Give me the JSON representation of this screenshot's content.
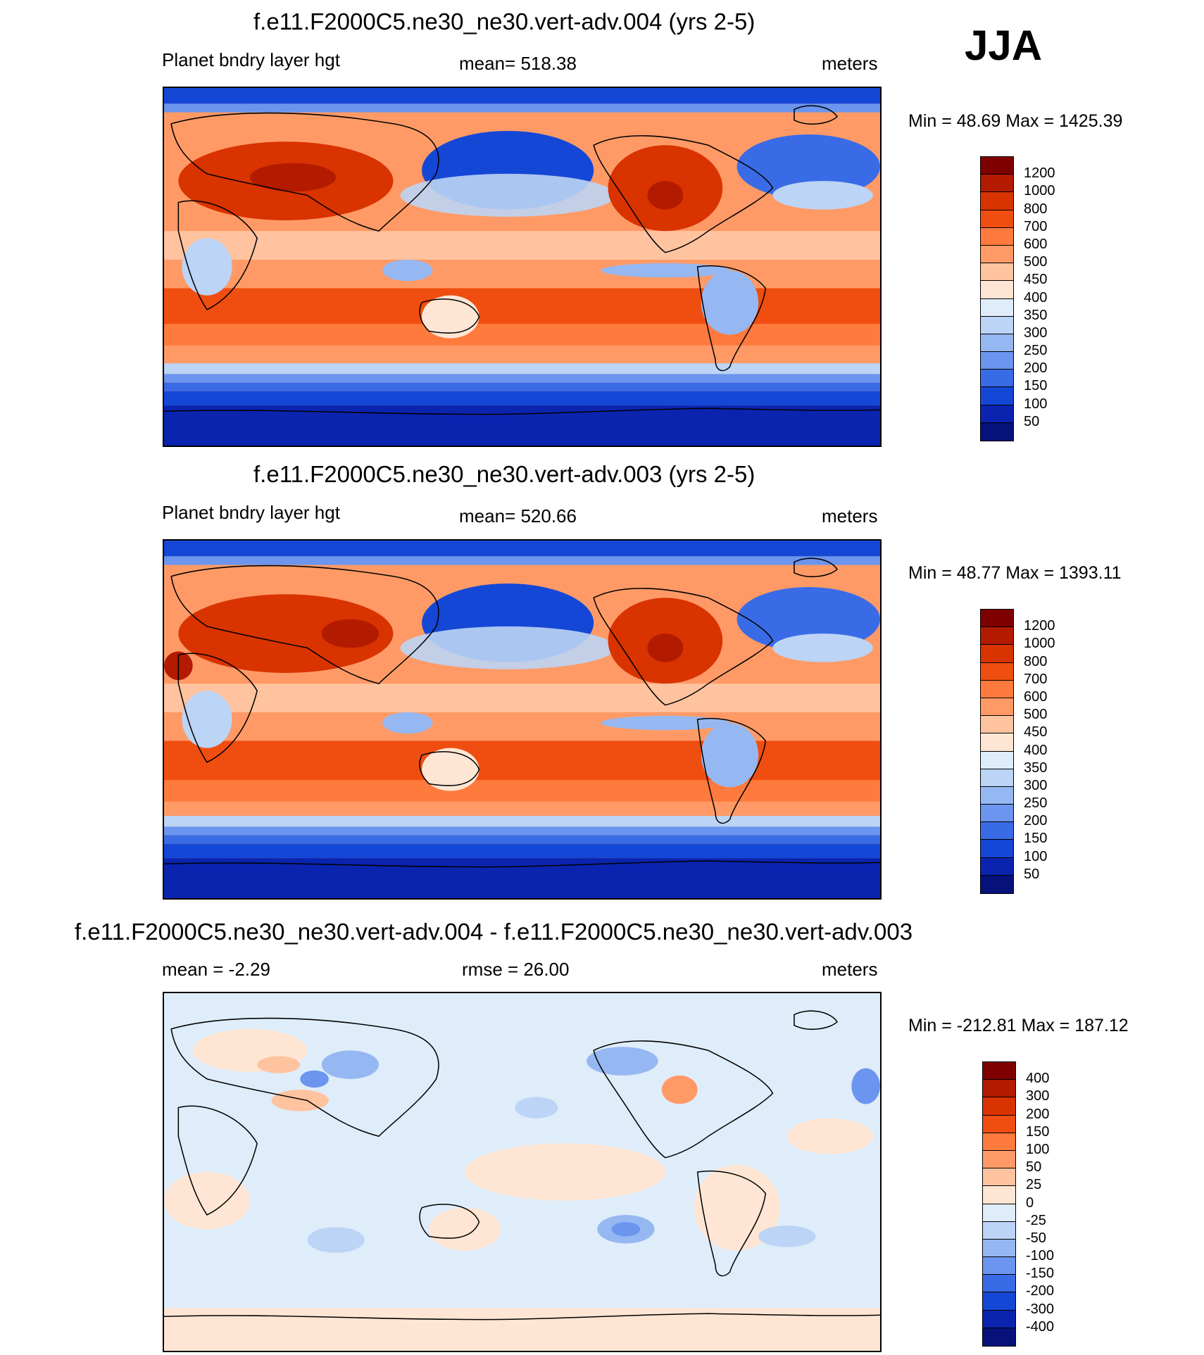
{
  "season_label": "JJA",
  "panels": [
    {
      "title": "f.e11.F2000C5.ne30_ne30.vert-adv.004 (yrs 2-5)",
      "left_label": "Planet bndry layer hgt",
      "center_label": "mean= 518.38",
      "right_label": "meters",
      "minmax": "Min =  48.69 Max = 1425.39",
      "colorbar": {
        "labels": [
          "1200",
          "1000",
          "800",
          "700",
          "600",
          "500",
          "450",
          "400",
          "350",
          "300",
          "250",
          "200",
          "150",
          "100",
          "50"
        ],
        "colors": [
          "#7f0000",
          "#b31b00",
          "#d93300",
          "#f04e10",
          "#ff7a3d",
          "#ff9a66",
          "#ffc3a0",
          "#ffe6d4",
          "#dfedfa",
          "#bcd4f5",
          "#96b8f2",
          "#6b95ee",
          "#3a6be6",
          "#1547d6",
          "#0a24b0",
          "#06127a"
        ]
      }
    },
    {
      "title": "f.e11.F2000C5.ne30_ne30.vert-adv.003 (yrs 2-5)",
      "left_label": "Planet bndry layer hgt",
      "center_label": "mean= 520.66",
      "right_label": "meters",
      "minmax": "Min =  48.77 Max = 1393.11",
      "colorbar": {
        "labels": [
          "1200",
          "1000",
          "800",
          "700",
          "600",
          "500",
          "450",
          "400",
          "350",
          "300",
          "250",
          "200",
          "150",
          "100",
          "50"
        ],
        "colors": [
          "#7f0000",
          "#b31b00",
          "#d93300",
          "#f04e10",
          "#ff7a3d",
          "#ff9a66",
          "#ffc3a0",
          "#ffe6d4",
          "#dfedfa",
          "#bcd4f5",
          "#96b8f2",
          "#6b95ee",
          "#3a6be6",
          "#1547d6",
          "#0a24b0",
          "#06127a"
        ]
      }
    },
    {
      "title": "f.e11.F2000C5.ne30_ne30.vert-adv.004 - f.e11.F2000C5.ne30_ne30.vert-adv.003",
      "left_label": "mean =  -2.29",
      "center_label": "rmse =  26.00",
      "right_label": "meters",
      "minmax": "Min = -212.81 Max = 187.12",
      "colorbar": {
        "labels": [
          "400",
          "300",
          "200",
          "150",
          "100",
          "50",
          "25",
          "0",
          "-25",
          "-50",
          "-100",
          "-150",
          "-200",
          "-300",
          "-400"
        ],
        "colors": [
          "#7f0000",
          "#b31b00",
          "#d93300",
          "#f04e10",
          "#ff7a3d",
          "#ff9a66",
          "#ffc3a0",
          "#ffe6d4",
          "#dfedfa",
          "#bcd4f5",
          "#96b8f2",
          "#6b95ee",
          "#3a6be6",
          "#1547d6",
          "#0a24b0",
          "#06127a"
        ]
      }
    }
  ]
}
